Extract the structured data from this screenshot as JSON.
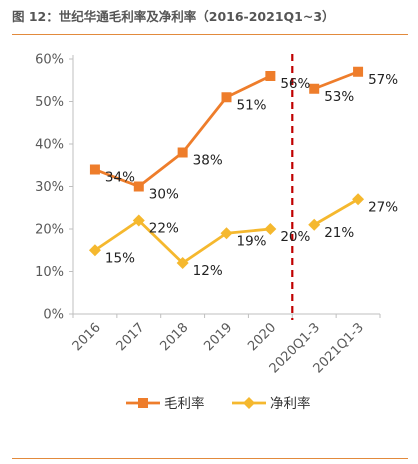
{
  "title": "图 12：世纪华通毛利率及净利率（2016-2021Q1~3）",
  "colors": {
    "gross": "#ee7d2b",
    "net": "#f5b82e",
    "divider": "#c00000",
    "axis": "#bfbfbf",
    "rule": "#e28a3c"
  },
  "chart_data": {
    "type": "line",
    "categories": [
      "2016",
      "2017",
      "2018",
      "2019",
      "2020",
      "2020Q1-3",
      "2021Q1-3"
    ],
    "series": [
      {
        "name": "毛利率",
        "marker": "square",
        "values": [
          34,
          30,
          38,
          51,
          56,
          53,
          57
        ],
        "labels": [
          "34%",
          "30%",
          "38%",
          "51%",
          "56%",
          "53%",
          "57%"
        ],
        "segments": [
          [
            0,
            4
          ],
          [
            5,
            6
          ]
        ]
      },
      {
        "name": "净利率",
        "marker": "diamond",
        "values": [
          15,
          22,
          12,
          19,
          20,
          21,
          27
        ],
        "labels": [
          "15%",
          "22%",
          "12%",
          "19%",
          "20%",
          "21%",
          "27%"
        ],
        "segments": [
          [
            0,
            4
          ],
          [
            5,
            6
          ]
        ]
      }
    ],
    "yticks": [
      "0%",
      "10%",
      "20%",
      "30%",
      "40%",
      "50%",
      "60%"
    ],
    "ylim": [
      0,
      60
    ],
    "divider": "between 2020 and 2020Q1-3, dashed red vertical line",
    "legend": "bottom-center",
    "grid": false
  }
}
